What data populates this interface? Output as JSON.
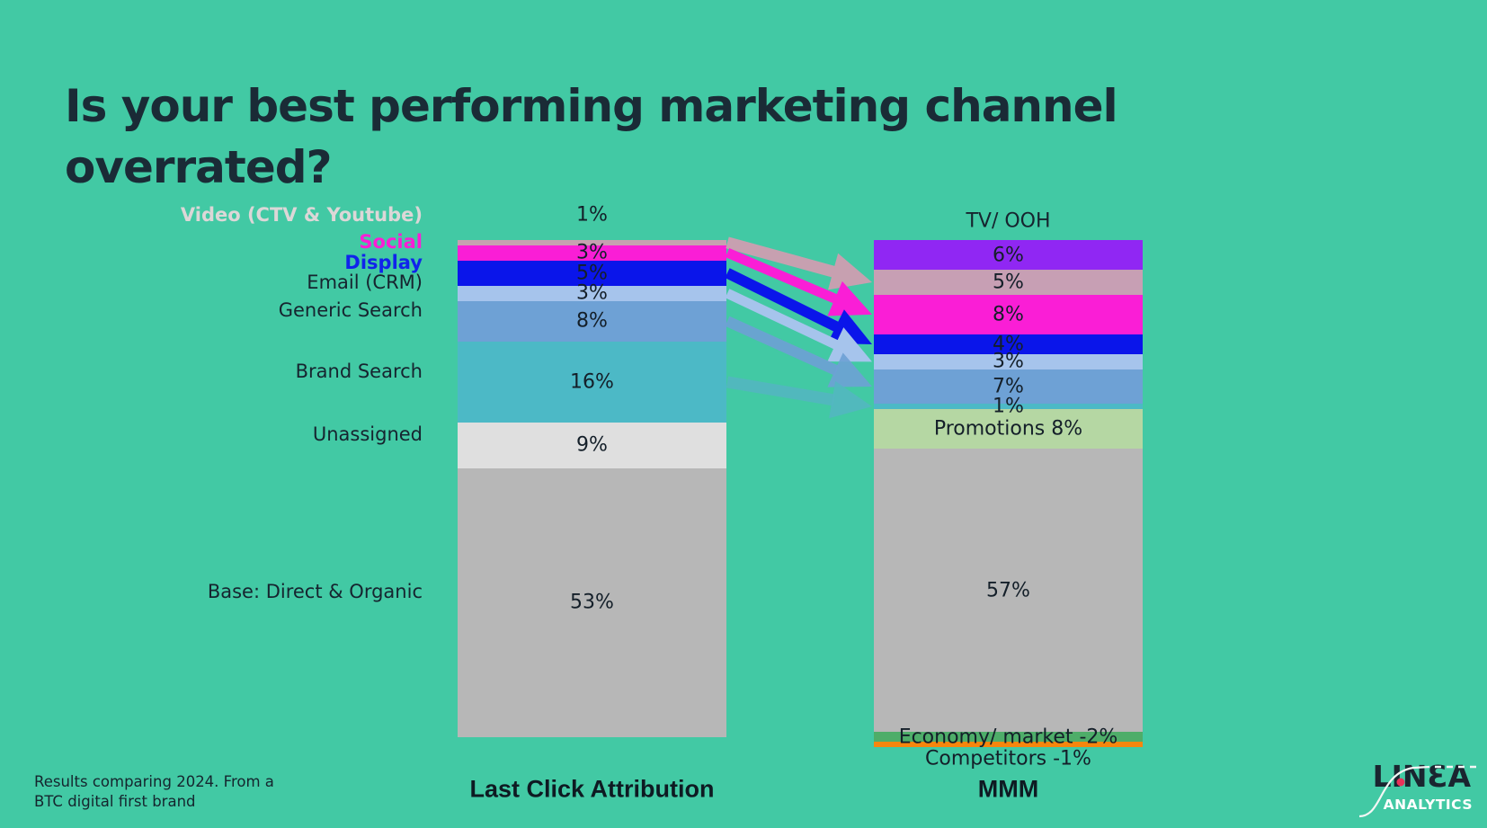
{
  "title_lines": [
    "Is your best performing marketing channel",
    "overrated?"
  ],
  "footnote": [
    "Results comparing 2024. From a",
    "BTC digital first brand"
  ],
  "logo": {
    "brand": "LINƐA",
    "subtitle": "ANALYTICS",
    "dot_color": "#E8325A",
    "curve_color": "#F4F6F5"
  },
  "colors": {
    "background": "#42C9A4",
    "title_text": "#1A2B36",
    "label_text": "#16242F",
    "value_text": "#141F29"
  },
  "chart_data": {
    "type": "bar",
    "variant": "stacked-bar-comparison",
    "grid": false,
    "legend": "inline-left-labels",
    "bars": [
      {
        "name": "Last Click Attribution",
        "labels_side": "left",
        "segments": [
          {
            "label": "Video (CTV & Youtube)",
            "pct": 1,
            "display": "1%",
            "color": "#C7A0B0",
            "label_color": "#DCD7D7",
            "label_bold": true,
            "value_position": "above"
          },
          {
            "label": "Social",
            "pct": 3,
            "display": "3%",
            "color": "#FA1ED6",
            "label_color": "#FA1ED6",
            "label_bold": true
          },
          {
            "label": "Display",
            "pct": 5,
            "display": "5%",
            "color": "#0A15EA",
            "label_color": "#1023EB",
            "label_bold": true
          },
          {
            "label": "Email (CRM)",
            "pct": 3,
            "display": "3%",
            "color": "#A6C4EC"
          },
          {
            "label": "Generic Search",
            "pct": 8,
            "display": "8%",
            "color": "#6EA1D5"
          },
          {
            "label": "Brand Search",
            "pct": 16,
            "display": "16%",
            "color": "#4CB9C6"
          },
          {
            "label": "Unassigned",
            "pct": 9,
            "display": "9%",
            "color": "#DFDFDF"
          },
          {
            "label": "Base: Direct & Organic",
            "pct": 53,
            "display": "53%",
            "color": "#B7B7B7"
          }
        ]
      },
      {
        "name": "MMM",
        "segments": [
          {
            "label": "TV/ OOH",
            "label_position": "above",
            "pct": 6,
            "display": "6%",
            "color": "#9027F3"
          },
          {
            "pct": 5,
            "display": "5%",
            "color": "#C79FB4"
          },
          {
            "pct": 8,
            "display": "8%",
            "color": "#FA1ED6"
          },
          {
            "pct": 4,
            "display": "4%",
            "color": "#0A15EA"
          },
          {
            "pct": 3,
            "display": "3%",
            "color": "#A6C4EC"
          },
          {
            "pct": 7,
            "display": "7%",
            "color": "#6EA1D5"
          },
          {
            "pct": 1,
            "display": "1%",
            "color": "#4CB9C6"
          },
          {
            "label": "Promotions",
            "pct": 8,
            "display": "Promotions 8%",
            "color": "#B5D7A3"
          },
          {
            "pct": 57,
            "display": "57%",
            "color": "#B7B7B7"
          },
          {
            "label": "Economy/ market",
            "pct": -2,
            "display": "Economy/ market -2%",
            "color": "#4EAD69"
          },
          {
            "label": "Competitors",
            "pct": -1,
            "display": "Competitors -1%",
            "color": "#F6860D",
            "value_position": "below"
          }
        ]
      }
    ],
    "flows": [
      {
        "from": 0,
        "to": 1,
        "color": "#C7A0B0",
        "width": 13,
        "opacity": 1
      },
      {
        "from": 1,
        "to": 2,
        "color": "#FA1ED6",
        "width": 11,
        "opacity": 1
      },
      {
        "from": 2,
        "to": 3,
        "color": "#0A15EA",
        "width": 12,
        "opacity": 1
      },
      {
        "from": 3,
        "to": 4,
        "color": "#A6C4EC",
        "width": 11,
        "opacity": 1
      },
      {
        "from": 4,
        "to": 5,
        "color": "#6EA1D5",
        "width": 12,
        "opacity": 0.9
      },
      {
        "from": 5,
        "to": 6,
        "color": "#54B6C2",
        "width": 13,
        "opacity": 0.85
      }
    ]
  }
}
